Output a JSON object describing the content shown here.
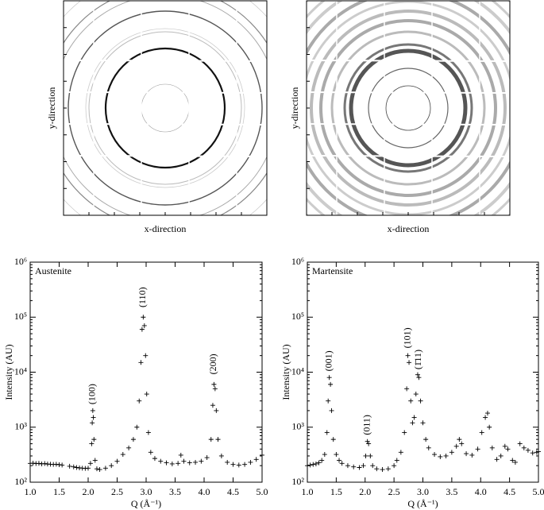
{
  "chart_data": [
    {
      "type": "image",
      "xlabel": "x-direction",
      "ylabel": "y-direction"
    },
    {
      "type": "image",
      "xlabel": "x-direction",
      "ylabel": "y-direction"
    },
    {
      "type": "scatter",
      "label": "Austenite",
      "xlabel": "Q (Å⁻¹)",
      "ylabel": "Intensity (AU)",
      "log_y": true,
      "xlim": [
        1,
        5
      ],
      "ylim": [
        100,
        1000000
      ],
      "xticks": [
        {
          "value": 1,
          "label": "1.0"
        },
        1.5,
        {
          "value": 2,
          "label": "2.0"
        },
        2.5,
        {
          "value": 3,
          "label": "3.0"
        },
        3.5,
        {
          "value": 4,
          "label": "4.0"
        },
        4.5,
        {
          "value": 5,
          "label": "5.0"
        }
      ],
      "yticks": [
        {
          "value": 100,
          "label": "10²"
        },
        {
          "value": 1000,
          "label": "10³"
        },
        {
          "value": 10000,
          "label": "10⁴"
        },
        {
          "value": 100000,
          "label": "10⁵"
        },
        {
          "value": 1000000,
          "label": "10⁶"
        }
      ],
      "annotations": [
        "(100)",
        "(110)",
        "(200)"
      ],
      "series": [
        {
          "color": "#000000",
          "x": [
            1.0,
            1.05,
            1.1,
            1.15,
            1.2,
            1.25,
            1.3,
            1.35,
            1.4,
            1.45,
            1.5,
            1.55,
            1.68,
            1.75,
            1.8,
            1.85,
            1.9,
            1.95,
            2.0,
            2.04,
            2.06,
            2.07,
            2.08,
            2.09,
            2.1,
            2.12,
            2.15,
            2.2,
            2.3,
            2.4,
            2.5,
            2.6,
            2.7,
            2.78,
            2.84,
            2.88,
            2.91,
            2.93,
            2.95,
            2.97,
            2.99,
            3.01,
            3.04,
            3.08,
            3.15,
            3.25,
            3.35,
            3.45,
            3.55,
            3.6,
            3.65,
            3.75,
            3.85,
            3.95,
            4.05,
            4.12,
            4.15,
            4.17,
            4.19,
            4.21,
            4.24,
            4.3,
            4.4,
            4.5,
            4.6,
            4.7,
            4.8,
            4.9,
            5.0
          ],
          "values": [
            220,
            222,
            218,
            220,
            215,
            218,
            214,
            212,
            210,
            212,
            208,
            205,
            195,
            190,
            185,
            182,
            180,
            178,
            180,
            220,
            500,
            1200,
            2000,
            1500,
            600,
            250,
            175,
            170,
            180,
            200,
            240,
            320,
            420,
            600,
            1000,
            3000,
            15000,
            60000,
            100000,
            70000,
            20000,
            4000,
            800,
            350,
            270,
            240,
            225,
            215,
            220,
            310,
            240,
            225,
            230,
            240,
            280,
            600,
            2500,
            6000,
            5000,
            2000,
            600,
            300,
            230,
            210,
            205,
            210,
            230,
            260,
            310
          ]
        }
      ]
    },
    {
      "type": "scatter",
      "label": "Martensite",
      "xlabel": "Q (Å⁻¹)",
      "ylabel": "Intensity (AU)",
      "log_y": true,
      "xlim": [
        1,
        5
      ],
      "ylim": [
        100,
        1000000
      ],
      "xticks": [
        {
          "value": 1,
          "label": "1.0"
        },
        1.5,
        {
          "value": 2,
          "label": "2.0"
        },
        2.5,
        {
          "value": 3,
          "label": "3.0"
        },
        3.5,
        {
          "value": 4,
          "label": "4.0"
        },
        4.5,
        {
          "value": 5,
          "label": "5.0"
        }
      ],
      "yticks": [
        {
          "value": 100,
          "label": "10²"
        },
        {
          "value": 1000,
          "label": "10³"
        },
        {
          "value": 10000,
          "label": "10⁴"
        },
        {
          "value": 100000,
          "label": "10⁵"
        },
        {
          "value": 1000000,
          "label": "10⁶"
        }
      ],
      "annotations": [
        "(001)",
        "(011)",
        "(101)",
        "(1̄11)"
      ],
      "series": [
        {
          "color": "#000000",
          "x": [
            1.0,
            1.05,
            1.1,
            1.15,
            1.2,
            1.25,
            1.3,
            1.34,
            1.36,
            1.38,
            1.4,
            1.42,
            1.45,
            1.5,
            1.55,
            1.6,
            1.7,
            1.8,
            1.9,
            1.97,
            2.01,
            2.04,
            2.06,
            2.09,
            2.13,
            2.2,
            2.3,
            2.4,
            2.5,
            2.55,
            2.62,
            2.68,
            2.72,
            2.74,
            2.76,
            2.79,
            2.82,
            2.85,
            2.88,
            2.91,
            2.93,
            2.96,
            3.0,
            3.05,
            3.1,
            3.2,
            3.3,
            3.4,
            3.5,
            3.58,
            3.63,
            3.67,
            3.75,
            3.85,
            3.95,
            4.02,
            4.08,
            4.12,
            4.15,
            4.2,
            4.28,
            4.35,
            4.42,
            4.47,
            4.55,
            4.6,
            4.68,
            4.75,
            4.82,
            4.9,
            4.97,
            5.0
          ],
          "values": [
            200,
            205,
            210,
            215,
            225,
            250,
            320,
            800,
            3000,
            8000,
            6000,
            2000,
            600,
            320,
            250,
            220,
            200,
            190,
            185,
            200,
            300,
            550,
            500,
            300,
            200,
            175,
            170,
            175,
            200,
            250,
            350,
            800,
            5000,
            20000,
            15000,
            3000,
            1200,
            1500,
            4000,
            9000,
            8000,
            3000,
            1200,
            600,
            420,
            320,
            290,
            300,
            350,
            450,
            600,
            500,
            330,
            310,
            400,
            800,
            1500,
            1800,
            1000,
            420,
            260,
            300,
            450,
            400,
            250,
            230,
            500,
            420,
            380,
            340,
            350,
            360
          ]
        }
      ]
    }
  ]
}
